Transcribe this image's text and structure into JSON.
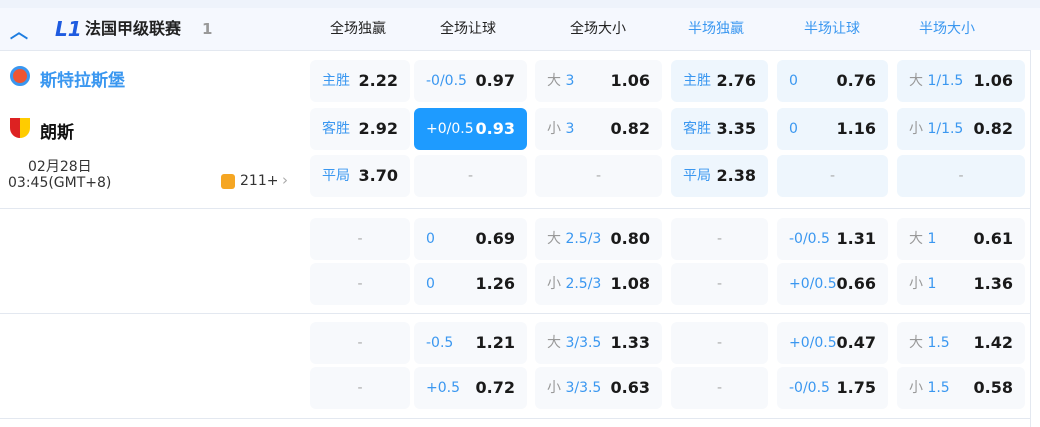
{
  "league": {
    "name": "法国甲级联赛",
    "count": "1"
  },
  "columns": [
    "全场独赢",
    "全场让球",
    "全场大小",
    "半场独赢",
    "半场让球",
    "半场大小"
  ],
  "match": {
    "home": "斯特拉斯堡",
    "away": "朗斯",
    "date": "02月28日",
    "time": "03:45(GMT+8)",
    "markets": "211+"
  },
  "rows": [
    [
      {
        "l": "主胜",
        "v": "2.22"
      },
      {
        "l": "-0/0.5",
        "v": "0.97"
      },
      {
        "g": "大",
        "l": "3",
        "v": "1.06"
      },
      {
        "l": "主胜",
        "v": "2.76"
      },
      {
        "l": "0",
        "v": "0.76"
      },
      {
        "g": "大",
        "l": "1/1.5",
        "v": "1.06"
      }
    ],
    [
      {
        "l": "客胜",
        "v": "2.92"
      },
      {
        "l": "+0/0.5",
        "v": "0.93",
        "sel": true
      },
      {
        "g": "小",
        "l": "3",
        "v": "0.82"
      },
      {
        "l": "客胜",
        "v": "3.35"
      },
      {
        "l": "0",
        "v": "1.16"
      },
      {
        "g": "小",
        "l": "1/1.5",
        "v": "0.82"
      }
    ],
    [
      {
        "l": "平局",
        "v": "3.70"
      },
      {
        "d": "-"
      },
      {
        "d": "-"
      },
      {
        "l": "平局",
        "v": "2.38"
      },
      {
        "d": "-"
      },
      {
        "d": "-"
      }
    ],
    [
      {
        "d": "-"
      },
      {
        "l": "0",
        "v": "0.69"
      },
      {
        "g": "大",
        "l": "2.5/3",
        "v": "0.80"
      },
      {
        "d": "-"
      },
      {
        "l": "-0/0.5",
        "v": "1.31"
      },
      {
        "g": "大",
        "l": "1",
        "v": "0.61"
      }
    ],
    [
      {
        "d": "-"
      },
      {
        "l": "0",
        "v": "1.26"
      },
      {
        "g": "小",
        "l": "2.5/3",
        "v": "1.08"
      },
      {
        "d": "-"
      },
      {
        "l": "+0/0.5",
        "v": "0.66"
      },
      {
        "g": "小",
        "l": "1",
        "v": "1.36"
      }
    ],
    [
      {
        "d": "-"
      },
      {
        "l": "-0.5",
        "v": "1.21"
      },
      {
        "g": "大",
        "l": "3/3.5",
        "v": "1.33"
      },
      {
        "d": "-"
      },
      {
        "l": "+0/0.5",
        "v": "0.47"
      },
      {
        "g": "大",
        "l": "1.5",
        "v": "1.42"
      }
    ],
    [
      {
        "d": "-"
      },
      {
        "l": "+0.5",
        "v": "0.72"
      },
      {
        "g": "小",
        "l": "3/3.5",
        "v": "0.63"
      },
      {
        "d": "-"
      },
      {
        "l": "-0/0.5",
        "v": "1.75"
      },
      {
        "g": "小",
        "l": "1.5",
        "v": "0.58"
      }
    ]
  ]
}
